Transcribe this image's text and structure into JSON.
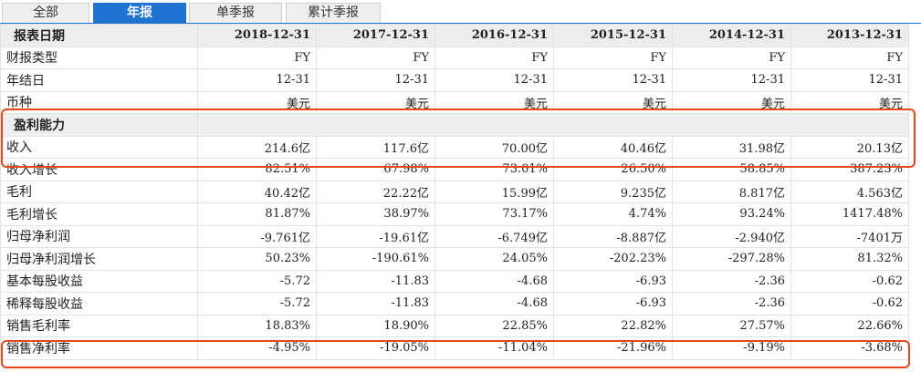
{
  "tabs": [
    {
      "label": "全部",
      "active": false
    },
    {
      "label": "年报",
      "active": true
    },
    {
      "label": "单季报",
      "active": false
    },
    {
      "label": "累计季报",
      "active": false
    }
  ],
  "table": {
    "header_label": "报表日期",
    "dates": [
      "2018-12-31",
      "2017-12-31",
      "2016-12-31",
      "2015-12-31",
      "2014-12-31",
      "2013-12-31"
    ],
    "rows_top": [
      {
        "label": "财报类型",
        "values": [
          "FY",
          "FY",
          "FY",
          "FY",
          "FY",
          "FY"
        ]
      },
      {
        "label": "年结日",
        "values": [
          "12-31",
          "12-31",
          "12-31",
          "12-31",
          "12-31",
          "12-31"
        ]
      },
      {
        "label": "币种",
        "values": [
          "美元",
          "美元",
          "美元",
          "美元",
          "美元",
          "美元"
        ]
      }
    ],
    "section_label": "盈利能力",
    "rows_section": [
      {
        "label": "收入",
        "values": [
          "214.6亿",
          "117.6亿",
          "70.00亿",
          "40.46亿",
          "31.98亿",
          "20.13亿"
        ]
      },
      {
        "label": "收入增长",
        "values": [
          "82.51%",
          "67.98%",
          "73.01%",
          "26.50%",
          "58.85%",
          "387.23%"
        ]
      },
      {
        "label": "毛利",
        "values": [
          "40.42亿",
          "22.22亿",
          "15.99亿",
          "9.235亿",
          "8.817亿",
          "4.563亿"
        ]
      },
      {
        "label": "毛利增长",
        "values": [
          "81.87%",
          "38.97%",
          "73.17%",
          "4.74%",
          "93.24%",
          "1417.48%"
        ]
      },
      {
        "label": "归母净利润",
        "values": [
          "-9.761亿",
          "-19.61亿",
          "-6.749亿",
          "-8.887亿",
          "-2.940亿",
          "-7401万"
        ]
      },
      {
        "label": "归母净利润增长",
        "values": [
          "50.23%",
          "-190.61%",
          "24.05%",
          "-202.23%",
          "-297.28%",
          "81.32%"
        ]
      },
      {
        "label": "基本每股收益",
        "values": [
          "-5.72",
          "-11.83",
          "-4.68",
          "-6.93",
          "-2.36",
          "-0.62"
        ]
      },
      {
        "label": "稀释每股收益",
        "values": [
          "-5.72",
          "-11.83",
          "-4.68",
          "-6.93",
          "-2.36",
          "-0.62"
        ]
      },
      {
        "label": "销售毛利率",
        "values": [
          "18.83%",
          "18.90%",
          "22.85%",
          "22.82%",
          "27.57%",
          "22.66%"
        ]
      },
      {
        "label": "销售净利率",
        "values": [
          "-4.95%",
          "-19.05%",
          "-11.04%",
          "-21.96%",
          "-9.19%",
          "-3.68%"
        ]
      }
    ]
  },
  "colors": {
    "accent": "#1f74d2",
    "highlight": "#e8461c"
  }
}
